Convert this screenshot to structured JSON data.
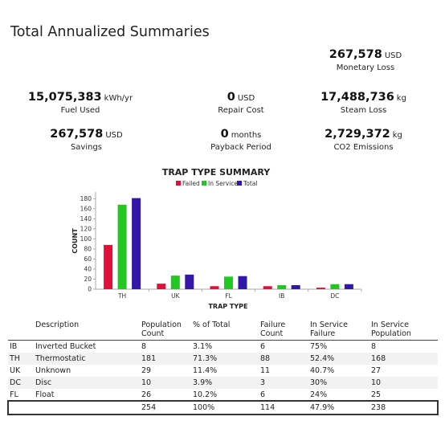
{
  "page_title": "Total Annualized Summaries",
  "metrics": {
    "monetary_loss": {
      "value": "267,578",
      "unit": "USD",
      "label": "Monetary Loss"
    },
    "fuel_used": {
      "value": "15,075,383",
      "unit": "kWh/yr",
      "label": "Fuel Used"
    },
    "repair_cost": {
      "value": "0",
      "unit": "USD",
      "label": "Repair Cost"
    },
    "steam_loss": {
      "value": "17,488,736",
      "unit": "kg",
      "label": "Steam Loss"
    },
    "savings": {
      "value": "267,578",
      "unit": "USD",
      "label": "Savings"
    },
    "payback_period": {
      "value": "0",
      "unit": "months",
      "label": "Payback Period"
    },
    "co2_emissions": {
      "value": "2,729,372",
      "unit": "kg",
      "label": "CO2 Emissions"
    }
  },
  "chart_data": {
    "type": "bar",
    "title": "TRAP TYPE SUMMARY",
    "xlabel": "TRAP TYPE",
    "ylabel": "COUNT",
    "categories": [
      "TH",
      "UK",
      "FL",
      "IB",
      "DC"
    ],
    "series": [
      {
        "name": "Failed",
        "values": [
          88,
          11,
          6,
          6,
          3
        ],
        "color": "#e0103a"
      },
      {
        "name": "In Service",
        "values": [
          168,
          27,
          25,
          8,
          10
        ],
        "color": "#22c822"
      },
      {
        "name": "Total",
        "values": [
          181,
          29,
          26,
          8,
          10
        ],
        "color": "#3318a8"
      }
    ],
    "ylim": [
      0,
      190
    ],
    "yticks": [
      0,
      20,
      40,
      60,
      80,
      100,
      120,
      140,
      160,
      180
    ],
    "legend_position": "top-center",
    "grid": false
  },
  "table": {
    "headers": [
      "",
      "Description",
      "Population Count",
      "% of Total",
      "Failure Count",
      "In Service Failure",
      "In Service Population"
    ],
    "rows": [
      [
        "IB",
        "Inverted Bucket",
        "8",
        "3.1%",
        "6",
        "75%",
        "8"
      ],
      [
        "TH",
        "Thermostatic",
        "181",
        "71.3%",
        "88",
        "52.4%",
        "168"
      ],
      [
        "UK",
        "Unknown",
        "29",
        "11.4%",
        "11",
        "40.7%",
        "27"
      ],
      [
        "DC",
        "Disc",
        "10",
        "3.9%",
        "3",
        "30%",
        "10"
      ],
      [
        "FL",
        "Float",
        "26",
        "10.2%",
        "6",
        "24%",
        "25"
      ]
    ],
    "totals": [
      "",
      "",
      "254",
      "100%",
      "114",
      "47.9%",
      "238"
    ]
  }
}
